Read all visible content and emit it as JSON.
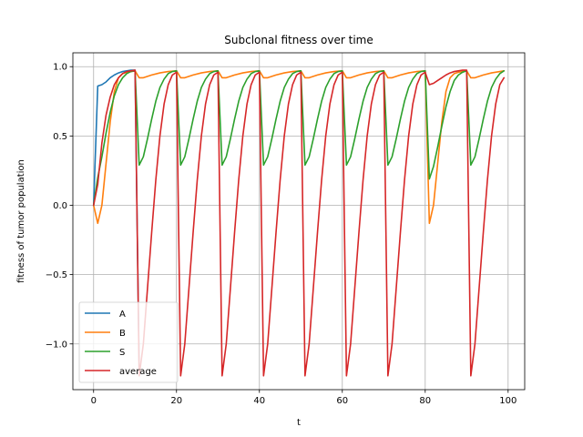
{
  "chart_data": {
    "type": "line",
    "title": "Subclonal fitness over time",
    "xlabel": "t",
    "ylabel": "fitness of tumor population",
    "xlim": [
      -5,
      104
    ],
    "ylim": [
      -1.33,
      1.1
    ],
    "xticks": [
      0,
      20,
      40,
      60,
      80,
      100
    ],
    "yticks": [
      -1.0,
      -0.5,
      0.0,
      0.5,
      1.0
    ],
    "xtick_labels": [
      "0",
      "20",
      "40",
      "60",
      "80",
      "100"
    ],
    "ytick_labels": [
      "−1.0",
      "−0.5",
      "0.0",
      "0.5",
      "1.0"
    ],
    "grid": true,
    "legend_position": "lower-left",
    "series": [
      {
        "name": "A",
        "color": "#1f77b4",
        "x": [
          0,
          1,
          2,
          3,
          4,
          5,
          6,
          7,
          8,
          9,
          10,
          11
        ],
        "y": [
          0.0,
          0.86,
          0.87,
          0.89,
          0.92,
          0.94,
          0.955,
          0.965,
          0.97,
          0.975,
          0.975,
          -1.2
        ]
      },
      {
        "name": "B",
        "color": "#ff7f0e",
        "x": [
          0,
          1,
          2,
          3,
          4,
          5,
          6,
          7,
          8,
          9,
          10,
          11,
          12,
          14,
          16,
          18,
          20,
          21,
          22,
          24,
          26,
          28,
          30,
          31,
          32,
          34,
          36,
          38,
          40,
          41,
          42,
          44,
          46,
          48,
          50,
          51,
          52,
          54,
          56,
          58,
          60,
          61,
          62,
          64,
          66,
          68,
          70,
          71,
          72,
          74,
          76,
          78,
          80,
          81,
          82,
          83,
          84,
          85,
          86,
          87,
          88,
          89,
          90,
          91,
          92,
          94,
          96,
          98,
          99
        ],
        "y": [
          0.0,
          -0.13,
          0.0,
          0.3,
          0.6,
          0.82,
          0.92,
          0.95,
          0.96,
          0.965,
          0.97,
          0.92,
          0.92,
          0.94,
          0.955,
          0.965,
          0.97,
          0.92,
          0.92,
          0.94,
          0.955,
          0.965,
          0.97,
          0.92,
          0.92,
          0.94,
          0.955,
          0.965,
          0.97,
          0.92,
          0.92,
          0.94,
          0.955,
          0.965,
          0.97,
          0.92,
          0.92,
          0.94,
          0.955,
          0.965,
          0.97,
          0.92,
          0.92,
          0.94,
          0.955,
          0.965,
          0.97,
          0.92,
          0.92,
          0.94,
          0.955,
          0.965,
          0.97,
          -0.13,
          0.0,
          0.3,
          0.6,
          0.82,
          0.92,
          0.95,
          0.96,
          0.965,
          0.97,
          0.92,
          0.92,
          0.94,
          0.955,
          0.965,
          0.97
        ]
      },
      {
        "name": "S",
        "color": "#2ca02c",
        "x": [
          0,
          1,
          2,
          3,
          4,
          5,
          6,
          7,
          8,
          9,
          10,
          11,
          12,
          13,
          14,
          15,
          16,
          17,
          18,
          19,
          20,
          21,
          22,
          23,
          24,
          25,
          26,
          27,
          28,
          29,
          30,
          31,
          32,
          33,
          34,
          35,
          36,
          37,
          38,
          39,
          40,
          41,
          42,
          43,
          44,
          45,
          46,
          47,
          48,
          49,
          50,
          51,
          52,
          53,
          54,
          55,
          56,
          57,
          58,
          59,
          60,
          61,
          62,
          63,
          64,
          65,
          66,
          67,
          68,
          69,
          70,
          71,
          72,
          73,
          74,
          75,
          76,
          77,
          78,
          79,
          80,
          81,
          82,
          83,
          84,
          85,
          86,
          87,
          88,
          89,
          90,
          91,
          92,
          93,
          94,
          95,
          96,
          97,
          98,
          99
        ],
        "y": [
          0.0,
          0.2,
          0.35,
          0.52,
          0.67,
          0.79,
          0.87,
          0.92,
          0.95,
          0.965,
          0.97,
          0.29,
          0.35,
          0.48,
          0.62,
          0.75,
          0.85,
          0.91,
          0.95,
          0.965,
          0.97,
          0.29,
          0.35,
          0.48,
          0.62,
          0.75,
          0.85,
          0.91,
          0.95,
          0.965,
          0.97,
          0.29,
          0.35,
          0.48,
          0.62,
          0.75,
          0.85,
          0.91,
          0.95,
          0.965,
          0.97,
          0.29,
          0.35,
          0.48,
          0.62,
          0.75,
          0.85,
          0.91,
          0.95,
          0.965,
          0.97,
          0.29,
          0.35,
          0.48,
          0.62,
          0.75,
          0.85,
          0.91,
          0.95,
          0.965,
          0.97,
          0.29,
          0.35,
          0.48,
          0.62,
          0.75,
          0.85,
          0.91,
          0.95,
          0.965,
          0.97,
          0.29,
          0.35,
          0.48,
          0.62,
          0.75,
          0.85,
          0.91,
          0.95,
          0.965,
          0.97,
          0.19,
          0.28,
          0.42,
          0.57,
          0.71,
          0.82,
          0.9,
          0.94,
          0.96,
          0.97,
          0.29,
          0.35,
          0.48,
          0.62,
          0.75,
          0.85,
          0.91,
          0.95,
          0.97
        ]
      },
      {
        "name": "average",
        "color": "#d62728",
        "x": [
          0,
          1,
          2,
          3,
          4,
          5,
          6,
          7,
          8,
          9,
          10,
          11,
          12,
          13,
          14,
          15,
          16,
          17,
          18,
          19,
          20,
          21,
          22,
          23,
          24,
          25,
          26,
          27,
          28,
          29,
          30,
          31,
          32,
          33,
          34,
          35,
          36,
          37,
          38,
          39,
          40,
          41,
          42,
          43,
          44,
          45,
          46,
          47,
          48,
          49,
          50,
          51,
          52,
          53,
          54,
          55,
          56,
          57,
          58,
          59,
          60,
          61,
          62,
          63,
          64,
          65,
          66,
          67,
          68,
          69,
          70,
          71,
          72,
          73,
          74,
          75,
          76,
          77,
          78,
          79,
          80,
          81,
          82,
          83,
          84,
          85,
          86,
          87,
          88,
          89,
          90,
          91,
          92,
          93,
          94,
          95,
          96,
          97,
          98,
          99
        ],
        "y": [
          0.0,
          0.15,
          0.45,
          0.65,
          0.78,
          0.87,
          0.92,
          0.95,
          0.965,
          0.97,
          0.975,
          -1.23,
          -1.0,
          -0.6,
          -0.2,
          0.18,
          0.5,
          0.73,
          0.87,
          0.94,
          0.96,
          -1.23,
          -1.0,
          -0.6,
          -0.2,
          0.18,
          0.5,
          0.73,
          0.87,
          0.94,
          0.96,
          -1.23,
          -1.0,
          -0.6,
          -0.2,
          0.18,
          0.5,
          0.73,
          0.87,
          0.94,
          0.96,
          -1.23,
          -1.0,
          -0.6,
          -0.2,
          0.18,
          0.5,
          0.73,
          0.87,
          0.94,
          0.96,
          -1.23,
          -1.0,
          -0.6,
          -0.2,
          0.18,
          0.5,
          0.73,
          0.87,
          0.94,
          0.96,
          -1.23,
          -1.0,
          -0.6,
          -0.2,
          0.18,
          0.5,
          0.73,
          0.87,
          0.94,
          0.96,
          -1.23,
          -1.0,
          -0.6,
          -0.2,
          0.18,
          0.5,
          0.73,
          0.87,
          0.94,
          0.96,
          0.87,
          0.88,
          0.9,
          0.92,
          0.94,
          0.955,
          0.965,
          0.97,
          0.975,
          0.975,
          -1.23,
          -1.0,
          -0.6,
          -0.2,
          0.18,
          0.5,
          0.73,
          0.87,
          0.92
        ]
      }
    ]
  }
}
